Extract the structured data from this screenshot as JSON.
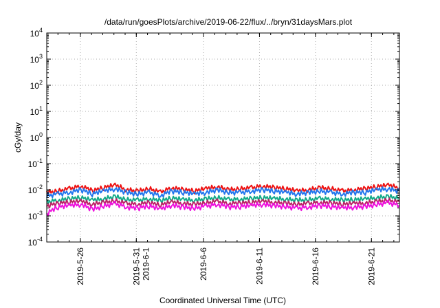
{
  "chart_data": {
    "type": "line",
    "title": "/data/run/goesPlots/archive/2019-06-22/flux/../bryn/31daysMars.plot",
    "xlabel": "Coordinated Universal Time (UTC)",
    "ylabel": "cGy/day",
    "yscale": "log",
    "ylim": [
      0.0001,
      10000
    ],
    "xlim": [
      "2019-05-23T00:00",
      "2019-06-23T12:00"
    ],
    "grid": true,
    "y_ticks": [
      {
        "value": 0.0001,
        "base": "10",
        "exp": "-4"
      },
      {
        "value": 0.001,
        "base": "10",
        "exp": "-3"
      },
      {
        "value": 0.01,
        "base": "10",
        "exp": "-2"
      },
      {
        "value": 0.1,
        "base": "10",
        "exp": "-1"
      },
      {
        "value": 1,
        "base": "10",
        "exp": "0"
      },
      {
        "value": 10,
        "base": "10",
        "exp": "1"
      },
      {
        "value": 100,
        "base": "10",
        "exp": "2"
      },
      {
        "value": 1000,
        "base": "10",
        "exp": "3"
      },
      {
        "value": 10000,
        "base": "10",
        "exp": "4"
      }
    ],
    "x_ticks": [
      {
        "date": "2019-05-26",
        "lines": [
          "2019-5-26"
        ]
      },
      {
        "date": "2019-05-31",
        "lines": [
          "2019-5-31",
          "2019-6-1"
        ]
      },
      {
        "date": "2019-06-06",
        "lines": [
          "2019-6-6"
        ]
      },
      {
        "date": "2019-06-11",
        "lines": [
          "2019-6-11"
        ]
      },
      {
        "date": "2019-06-16",
        "lines": [
          "2019-6-16"
        ]
      },
      {
        "date": "2019-06-21",
        "lines": [
          "2019-6-21"
        ]
      }
    ],
    "series": [
      {
        "color": "#ee1111",
        "values": [
          0.008,
          0.009,
          0.011,
          0.014,
          0.009,
          0.012,
          0.015,
          0.01,
          0.009,
          0.011,
          0.008,
          0.012,
          0.01,
          0.009,
          0.011,
          0.013,
          0.01,
          0.011,
          0.012,
          0.014,
          0.012,
          0.011,
          0.009,
          0.01,
          0.012,
          0.011,
          0.009,
          0.01,
          0.011,
          0.013,
          0.015,
          0.012
        ]
      },
      {
        "color": "#2277ee",
        "values": [
          0.006,
          0.007,
          0.008,
          0.01,
          0.007,
          0.009,
          0.011,
          0.008,
          0.007,
          0.008,
          0.006,
          0.009,
          0.008,
          0.007,
          0.008,
          0.01,
          0.008,
          0.008,
          0.009,
          0.01,
          0.009,
          0.008,
          0.007,
          0.008,
          0.009,
          0.008,
          0.007,
          0.008,
          0.008,
          0.01,
          0.011,
          0.009
        ]
      },
      {
        "color": "#11aa88",
        "values": [
          0.0035,
          0.004,
          0.0045,
          0.005,
          0.004,
          0.0045,
          0.0055,
          0.0042,
          0.004,
          0.0045,
          0.0038,
          0.0048,
          0.0042,
          0.004,
          0.0045,
          0.005,
          0.0042,
          0.0044,
          0.0046,
          0.005,
          0.0046,
          0.0044,
          0.004,
          0.0042,
          0.0046,
          0.0044,
          0.004,
          0.0042,
          0.0044,
          0.005,
          0.0055,
          0.0048
        ]
      },
      {
        "color": "#bb2266",
        "values": [
          0.0025,
          0.003,
          0.0034,
          0.0036,
          0.0028,
          0.0033,
          0.0038,
          0.003,
          0.0028,
          0.0032,
          0.0026,
          0.0034,
          0.003,
          0.0028,
          0.0032,
          0.0036,
          0.003,
          0.0031,
          0.0033,
          0.0036,
          0.0033,
          0.0031,
          0.0028,
          0.003,
          0.0033,
          0.0031,
          0.0028,
          0.003,
          0.0031,
          0.0036,
          0.004,
          0.0034
        ]
      },
      {
        "color": "#ee11dd",
        "values": [
          0.0012,
          0.0022,
          0.0025,
          0.0028,
          0.0018,
          0.0024,
          0.003,
          0.0022,
          0.002,
          0.0024,
          0.0018,
          0.0026,
          0.0022,
          0.002,
          0.0024,
          0.0028,
          0.0022,
          0.0023,
          0.0025,
          0.0028,
          0.0025,
          0.0023,
          0.002,
          0.0022,
          0.0025,
          0.0023,
          0.002,
          0.0022,
          0.0023,
          0.0028,
          0.0032,
          0.0026
        ]
      }
    ]
  }
}
